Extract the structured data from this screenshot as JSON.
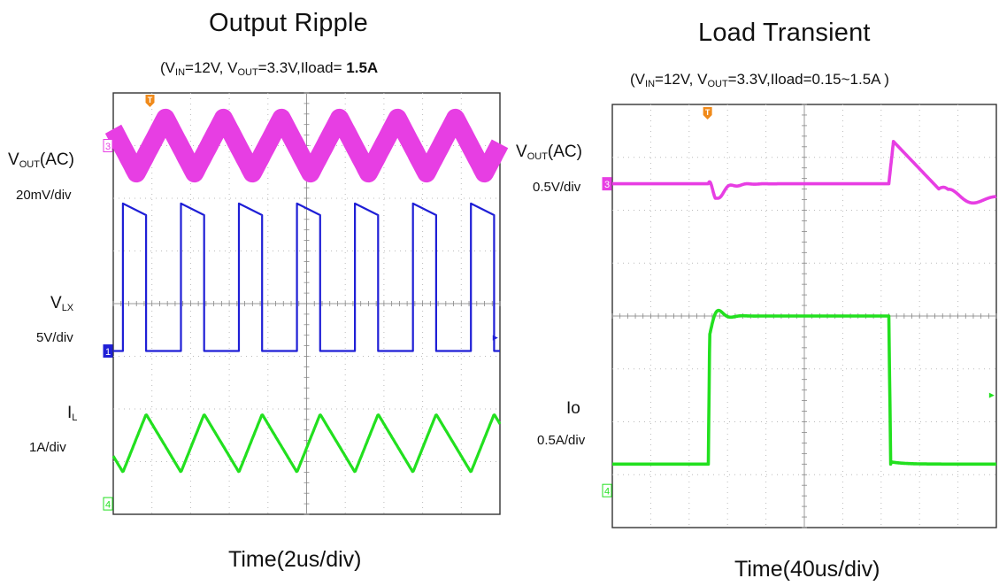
{
  "chart_data": [
    {
      "type": "line",
      "title": "Output Ripple",
      "subtitle": {
        "vin_label": "V",
        "vin_sub": "IN",
        "vin_value": "=12V,",
        "vout_label": "V",
        "vout_sub": "OUT",
        "vout_value": "=3.3V,Iload=",
        "iload_value": "1.5A"
      },
      "xlabel": "Time(2us/div)",
      "grid": true,
      "divisions": {
        "x": 10,
        "y": 8
      },
      "trigger_marker": "T",
      "channels": [
        {
          "name_main": "V",
          "name_sub": "OUT",
          "name_tail": "(AC)",
          "scale": "20mV/div",
          "channel_number": "3",
          "color": "#e73ee3",
          "waveform": "triangle-ripple",
          "period_div": 1.5,
          "offset_div": 0.6,
          "amplitude_div": 1.05,
          "band_div": 0.25
        },
        {
          "name_main": "V",
          "name_sub": "LX",
          "name_tail": "",
          "scale": "5V/div",
          "channel_number": "1",
          "color": "#1f1fd6",
          "waveform": "switching",
          "period_div": 1.5,
          "rise_div": 0.25,
          "on_div": 0.6,
          "low_level_div": 3.1,
          "high_level_div": 5.9
        },
        {
          "name_main": "I",
          "name_sub": "L",
          "name_tail": "",
          "scale": "1A/div",
          "channel_number": "4",
          "color": "#22e01f",
          "waveform": "inductor-current",
          "period_div": 1.5,
          "rise_div": 0.25,
          "on_div": 0.6,
          "min_level_div": 0.8,
          "max_level_div": 1.9
        }
      ]
    },
    {
      "type": "line",
      "title": "Load Transient",
      "subtitle": {
        "vin_label": "V",
        "vin_sub": "IN",
        "vin_value": "=12V,",
        "vout_label": "V",
        "vout_sub": "OUT",
        "vout_value": "=3.3V,Iload=0.15~1.5A",
        "iload_value": ""
      },
      "xlabel": "Time(40us/div)",
      "grid": true,
      "divisions": {
        "x": 10,
        "y": 8
      },
      "trigger_marker": "T",
      "load_step": {
        "low_A": 0.15,
        "high_A": 1.5,
        "step_up_div": 2.5,
        "step_down_div": 7.2
      },
      "channels": [
        {
          "name_main": "V",
          "name_sub": "OUT",
          "name_tail": "(AC)",
          "scale": "0.5V/div",
          "channel_number": "3",
          "color": "#e73ee3",
          "waveform": "vout-transient",
          "baseline_div": 6.5,
          "undershoot_div": 0.75,
          "overshoot_div": 0.8
        },
        {
          "name_main": "Io",
          "name_sub": "",
          "name_tail": "",
          "scale": "0.5A/div",
          "channel_number": "4",
          "color": "#22e01f",
          "waveform": "load-step",
          "low_level_div": 1.2,
          "high_level_div": 4.0
        }
      ]
    }
  ]
}
